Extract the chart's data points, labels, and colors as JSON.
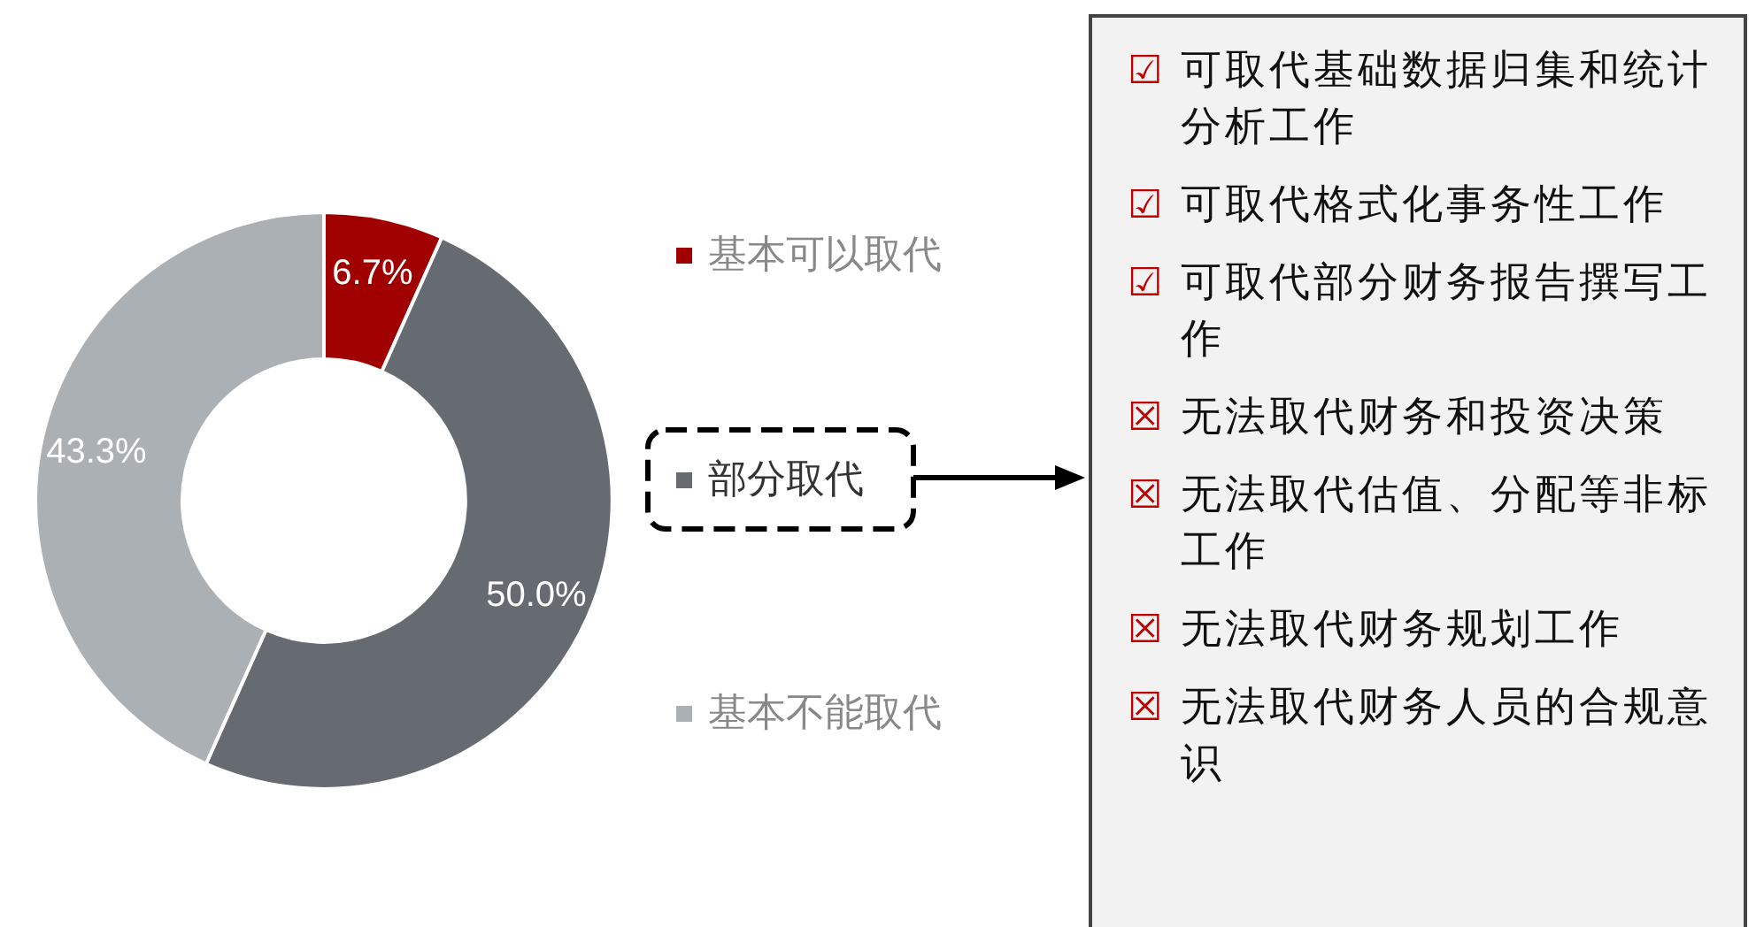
{
  "chart_data": {
    "type": "donut",
    "categories": [
      "基本可以取代",
      "部分取代",
      "基本不能取代"
    ],
    "values": [
      6.7,
      50.0,
      43.3
    ],
    "colors": [
      "#a00000",
      "#656b70",
      "#aab0b4"
    ],
    "value_labels": [
      "6.7%",
      "50.0%",
      "43.3%"
    ],
    "legend": "right",
    "annotations": [
      "☑ 可取代基础数据归集和统计分析工作",
      "☑ 可取代格式化事务性工作",
      "☑ 可取代部分财务报告撰写工作",
      "☒ 无法取代财务和投资决策",
      "☒ 无法取代估值、分配等非标工作",
      "☒ 无法取代财务规划工作",
      "☒ 无法取代财务人员的合规意识"
    ]
  }
}
